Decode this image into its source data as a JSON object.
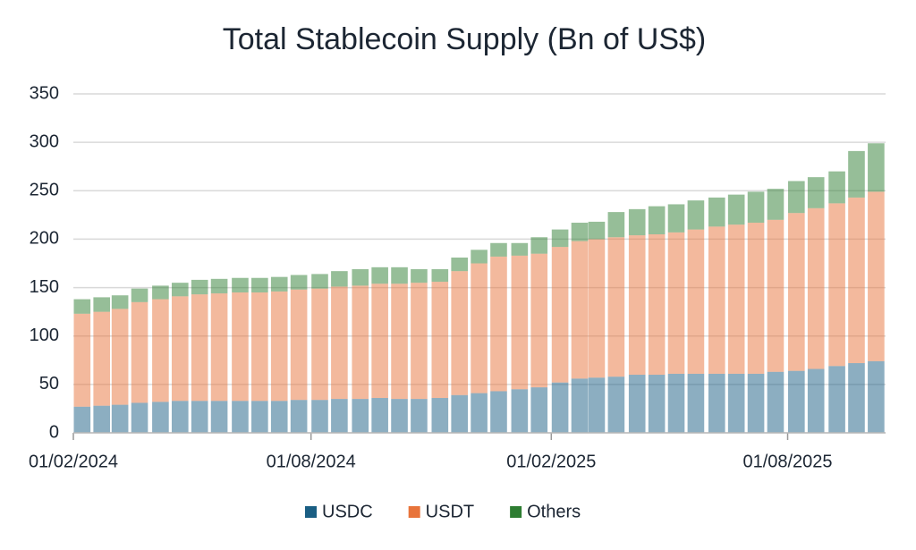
{
  "chart_data": {
    "type": "stacked_bar",
    "title": "Total Stablecoin Supply (Bn of US$)",
    "x": [
      "2024-02-01",
      "2024-02-16",
      "2024-03-01",
      "2024-03-16",
      "2024-04-01",
      "2024-04-16",
      "2024-05-01",
      "2024-05-16",
      "2024-06-01",
      "2024-06-16",
      "2024-07-01",
      "2024-07-16",
      "2024-08-01",
      "2024-08-16",
      "2024-09-01",
      "2024-09-16",
      "2024-10-01",
      "2024-10-16",
      "2024-11-01",
      "2024-11-16",
      "2024-12-01",
      "2024-12-16",
      "2025-01-01",
      "2025-01-16",
      "2025-02-01",
      "2025-02-16",
      "2025-03-01",
      "2025-03-16",
      "2025-04-01",
      "2025-04-16",
      "2025-05-01",
      "2025-05-16",
      "2025-06-01",
      "2025-06-16",
      "2025-07-01",
      "2025-07-16",
      "2025-08-01",
      "2025-08-16",
      "2025-09-01",
      "2025-09-16",
      "2025-10-01"
    ],
    "series": [
      {
        "name": "USDC",
        "color": "#1a5e83",
        "values": [
          27,
          28,
          29,
          31,
          32,
          33,
          33,
          33,
          33,
          33,
          33,
          34,
          34,
          35,
          35,
          36,
          35,
          35,
          36,
          39,
          41,
          43,
          45,
          47,
          52,
          56,
          57,
          58,
          60,
          60,
          61,
          61,
          61,
          61,
          61,
          63,
          64,
          66,
          69,
          72,
          74
        ]
      },
      {
        "name": "USDT",
        "color": "#e8743b",
        "values": [
          96,
          97,
          99,
          104,
          106,
          108,
          110,
          111,
          112,
          112,
          113,
          114,
          115,
          116,
          117,
          118,
          119,
          120,
          120,
          128,
          134,
          139,
          138,
          138,
          140,
          142,
          143,
          144,
          144,
          145,
          146,
          149,
          152,
          154,
          156,
          157,
          163,
          166,
          168,
          171,
          175
        ]
      },
      {
        "name": "Others",
        "color": "#2e7d32",
        "values": [
          15,
          15,
          14,
          14,
          14,
          14,
          15,
          15,
          15,
          15,
          15,
          15,
          15,
          16,
          17,
          17,
          17,
          14,
          13,
          14,
          14,
          14,
          13,
          17,
          18,
          19,
          18,
          26,
          27,
          29,
          29,
          30,
          30,
          31,
          32,
          32,
          33,
          32,
          33,
          48,
          50
        ]
      }
    ],
    "xlim": [
      "2024-02-01",
      "2025-10-15"
    ],
    "xticks": [
      {
        "value": "2024-02-01",
        "label": "01/02/2024"
      },
      {
        "value": "2024-08-01",
        "label": "01/08/2024"
      },
      {
        "value": "2025-02-01",
        "label": "01/02/2025"
      },
      {
        "value": "2025-08-01",
        "label": "01/08/2025"
      }
    ],
    "ylim": [
      0,
      350
    ],
    "yticks": [
      0,
      50,
      100,
      150,
      200,
      250,
      300,
      350
    ],
    "grid": true
  }
}
